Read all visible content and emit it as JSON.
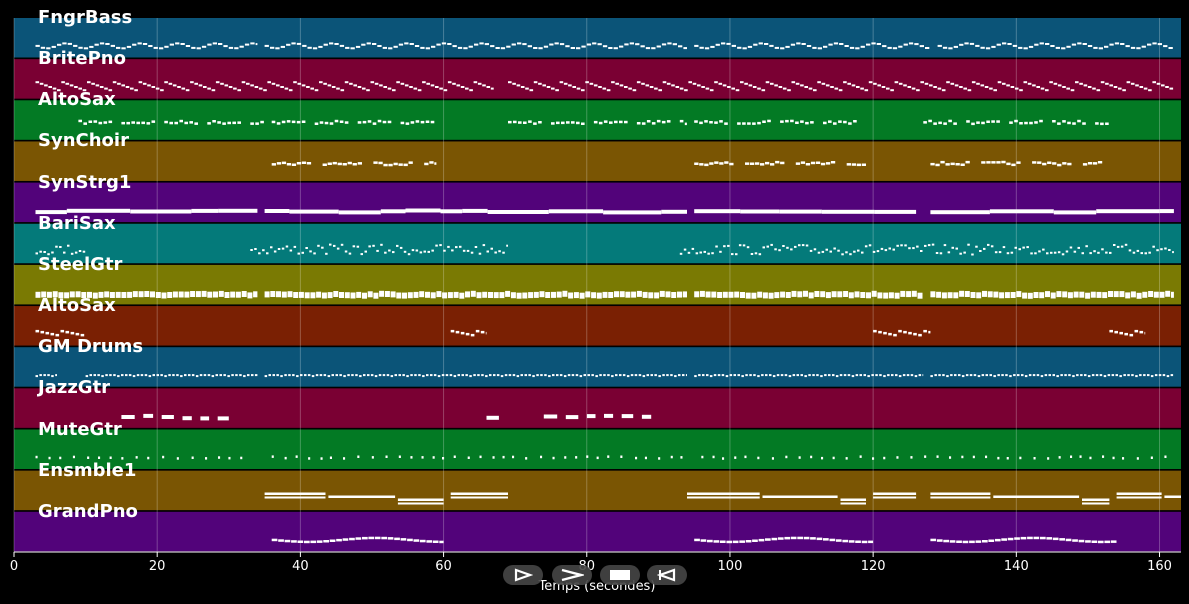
{
  "x_axis": {
    "label": "Temps (secondes)",
    "min": 0,
    "max": 163,
    "ticks": [
      0,
      20,
      40,
      60,
      80,
      100,
      120,
      140,
      160
    ]
  },
  "tracks": [
    {
      "name": "FngrBass",
      "color": "#0b5478",
      "pattern": "bass",
      "segments": [
        [
          3,
          34
        ],
        [
          35,
          94
        ],
        [
          95,
          128
        ],
        [
          129,
          162
        ]
      ]
    },
    {
      "name": "BritePno",
      "color": "#7a0033",
      "pattern": "chords",
      "segments": [
        [
          3,
          67
        ],
        [
          69,
          162
        ]
      ]
    },
    {
      "name": "AltoSax",
      "color": "#037a24",
      "pattern": "melody",
      "segments": [
        [
          9,
          35
        ],
        [
          36,
          60
        ],
        [
          69,
          94
        ],
        [
          95,
          119
        ],
        [
          127,
          153
        ]
      ]
    },
    {
      "name": "SynChoir",
      "color": "#7a5503",
      "pattern": "phrases",
      "segments": [
        [
          36,
          59
        ],
        [
          95,
          119
        ],
        [
          128,
          152
        ]
      ]
    },
    {
      "name": "SynStrg1",
      "color": "#52037a",
      "pattern": "long",
      "segments": [
        [
          3,
          34
        ],
        [
          35,
          94
        ],
        [
          95,
          126
        ],
        [
          128,
          162
        ]
      ]
    },
    {
      "name": "BariSax",
      "color": "#047a7a",
      "pattern": "busy",
      "segments": [
        [
          3,
          10
        ],
        [
          33,
          69
        ],
        [
          93,
          162
        ]
      ]
    },
    {
      "name": "SteelGtr",
      "color": "#7a7a03",
      "pattern": "dense",
      "segments": [
        [
          3,
          34
        ],
        [
          35,
          94
        ],
        [
          95,
          127
        ],
        [
          128,
          162
        ]
      ]
    },
    {
      "name": "AltoSax",
      "color": "#7a2003",
      "pattern": "sparse",
      "segments": [
        [
          3,
          10
        ],
        [
          61,
          66
        ],
        [
          120,
          128
        ],
        [
          153,
          158
        ]
      ]
    },
    {
      "name": "GM Drums",
      "color": "#0b5478",
      "pattern": "drums",
      "segments": [
        [
          3,
          6
        ],
        [
          10,
          34
        ],
        [
          35,
          94
        ],
        [
          95,
          127
        ],
        [
          128,
          162
        ]
      ]
    },
    {
      "name": "JazzGtr",
      "color": "#7a0033",
      "pattern": "blocks",
      "segments": [
        [
          15,
          30
        ],
        [
          66,
          68
        ],
        [
          74,
          89
        ]
      ]
    },
    {
      "name": "MuteGtr",
      "color": "#037a24",
      "pattern": "dots",
      "segments": [
        [
          3,
          32
        ],
        [
          36,
          94
        ],
        [
          96,
          162
        ]
      ]
    },
    {
      "name": "Ensmble1",
      "color": "#7a5503",
      "pattern": "pads",
      "segments": [
        [
          35,
          60
        ],
        [
          61,
          69
        ],
        [
          94,
          119
        ],
        [
          120,
          126
        ],
        [
          128,
          153
        ],
        [
          154,
          163
        ]
      ]
    },
    {
      "name": "GrandPno",
      "color": "#52037a",
      "pattern": "piano",
      "segments": [
        [
          36,
          60
        ],
        [
          95,
          120
        ],
        [
          128,
          154
        ]
      ]
    }
  ],
  "controls": [
    {
      "name": "play-button",
      "icon": "play-outline-icon"
    },
    {
      "name": "forward-button",
      "icon": "chevron-right-icon"
    },
    {
      "name": "stop-button",
      "icon": "stop-icon"
    },
    {
      "name": "rewind-button",
      "icon": "rewind-icon"
    }
  ]
}
